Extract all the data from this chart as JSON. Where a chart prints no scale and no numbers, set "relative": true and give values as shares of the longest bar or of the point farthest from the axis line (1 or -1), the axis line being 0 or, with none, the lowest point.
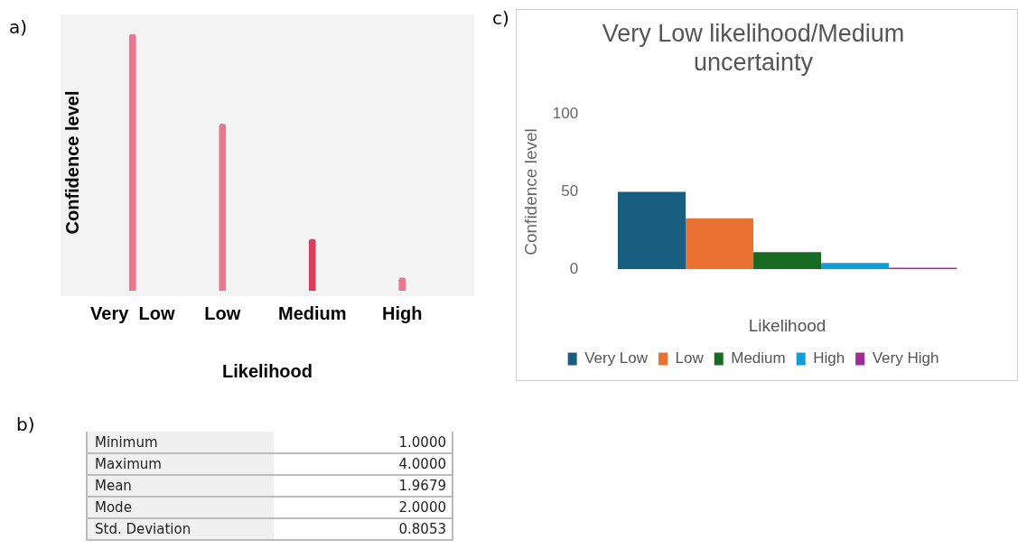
{
  "chart_data": [
    {
      "type": "bar",
      "annotations": [
        "a)"
      ],
      "xlabel": "Likelihood",
      "ylabel": "Confidence level",
      "categories": [
        "Very  Low",
        "Low",
        "Medium",
        "High"
      ],
      "values": [
        1,
        0.65,
        0.2,
        0.05
      ],
      "colors": [
        "#e8788e",
        "#e8788e",
        "#d93d5e",
        "#e8788e"
      ],
      "relative": true
    },
    {
      "type": "other",
      "annotations": [
        "b)"
      ],
      "categories": [
        "Minimum",
        "Maximum",
        "Mean",
        "Mode",
        "Std. Deviation"
      ],
      "value_labels": [
        "1.0000",
        "4.0000",
        "1.9679",
        "2.0000",
        "0.8053"
      ]
    },
    {
      "type": "bar",
      "annotations": [
        "c)"
      ],
      "title": "Very Low likelihood/Medium uncertainty",
      "xlabel": "Likelihood",
      "ylabel": "Confidence level",
      "categories": [
        null
      ],
      "ylim": [
        0,
        100
      ],
      "yticks": [
        0,
        50,
        100
      ],
      "legend": "bottom",
      "series": [
        {
          "name": "Very Low",
          "color": "#175e80",
          "values": [
            50
          ]
        },
        {
          "name": "Low",
          "color": "#e97132",
          "values": [
            33
          ]
        },
        {
          "name": "Medium",
          "color": "#196b24",
          "values": [
            11
          ]
        },
        {
          "name": "High",
          "color": "#0f9ed5",
          "values": [
            4
          ]
        },
        {
          "name": "Very High",
          "color": "#a02b93",
          "values": [
            1
          ]
        }
      ]
    }
  ]
}
